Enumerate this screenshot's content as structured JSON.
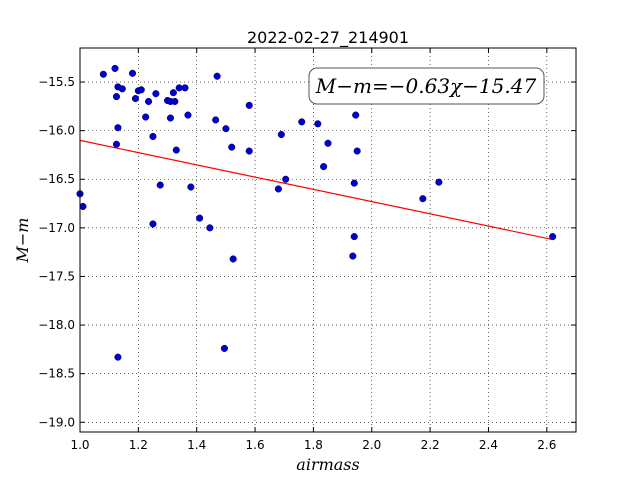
{
  "chart_data": {
    "type": "scatter",
    "title": "2022-02-27_214901",
    "xlabel": "airmass",
    "ylabel": "M−m",
    "xlim": [
      1.0,
      2.7
    ],
    "ylim": [
      -19.1,
      -15.15
    ],
    "xticks": [
      "1.0",
      "1.2",
      "1.4",
      "1.6",
      "1.8",
      "2.0",
      "2.2",
      "2.4",
      "2.6"
    ],
    "yticks": [
      "−15.5",
      "−16.0",
      "−16.5",
      "−17.0",
      "−17.5",
      "−18.0",
      "−18.5",
      "−19.0"
    ],
    "grid": true,
    "annotation": "M−m=−0.63χ−15.47",
    "fit_line": {
      "slope": -0.63,
      "intercept": -15.47,
      "x_range": [
        1.0,
        2.62
      ],
      "color": "#ff0000"
    },
    "marker_color": "#0000cc",
    "points": [
      [
        1.0,
        -16.65
      ],
      [
        1.01,
        -16.78
      ],
      [
        1.08,
        -15.42
      ],
      [
        1.12,
        -15.36
      ],
      [
        1.125,
        -15.65
      ],
      [
        1.13,
        -15.55
      ],
      [
        1.145,
        -15.57
      ],
      [
        1.125,
        -16.14
      ],
      [
        1.13,
        -15.97
      ],
      [
        1.18,
        -15.41
      ],
      [
        1.19,
        -15.67
      ],
      [
        1.2,
        -15.59
      ],
      [
        1.21,
        -15.58
      ],
      [
        1.225,
        -15.86
      ],
      [
        1.235,
        -15.7
      ],
      [
        1.26,
        -15.62
      ],
      [
        1.25,
        -16.06
      ],
      [
        1.275,
        -16.56
      ],
      [
        1.3,
        -15.69
      ],
      [
        1.31,
        -15.7
      ],
      [
        1.32,
        -15.61
      ],
      [
        1.34,
        -15.56
      ],
      [
        1.36,
        -15.56
      ],
      [
        1.37,
        -15.84
      ],
      [
        1.31,
        -15.87
      ],
      [
        1.325,
        -15.7
      ],
      [
        1.33,
        -16.2
      ],
      [
        1.38,
        -16.58
      ],
      [
        1.25,
        -16.96
      ],
      [
        1.41,
        -16.9
      ],
      [
        1.445,
        -17.0
      ],
      [
        1.47,
        -15.44
      ],
      [
        1.465,
        -15.89
      ],
      [
        1.5,
        -15.98
      ],
      [
        1.52,
        -16.17
      ],
      [
        1.58,
        -15.74
      ],
      [
        1.58,
        -16.21
      ],
      [
        1.525,
        -17.32
      ],
      [
        1.495,
        -18.24
      ],
      [
        1.13,
        -18.33
      ],
      [
        1.69,
        -16.04
      ],
      [
        1.68,
        -16.6
      ],
      [
        1.705,
        -16.5
      ],
      [
        1.76,
        -15.91
      ],
      [
        1.815,
        -15.93
      ],
      [
        1.835,
        -16.37
      ],
      [
        1.85,
        -16.13
      ],
      [
        1.945,
        -15.84
      ],
      [
        1.95,
        -16.21
      ],
      [
        1.94,
        -16.54
      ],
      [
        1.94,
        -17.09
      ],
      [
        1.935,
        -17.29
      ],
      [
        2.175,
        -16.7
      ],
      [
        2.23,
        -16.53
      ],
      [
        2.62,
        -17.09
      ]
    ]
  }
}
